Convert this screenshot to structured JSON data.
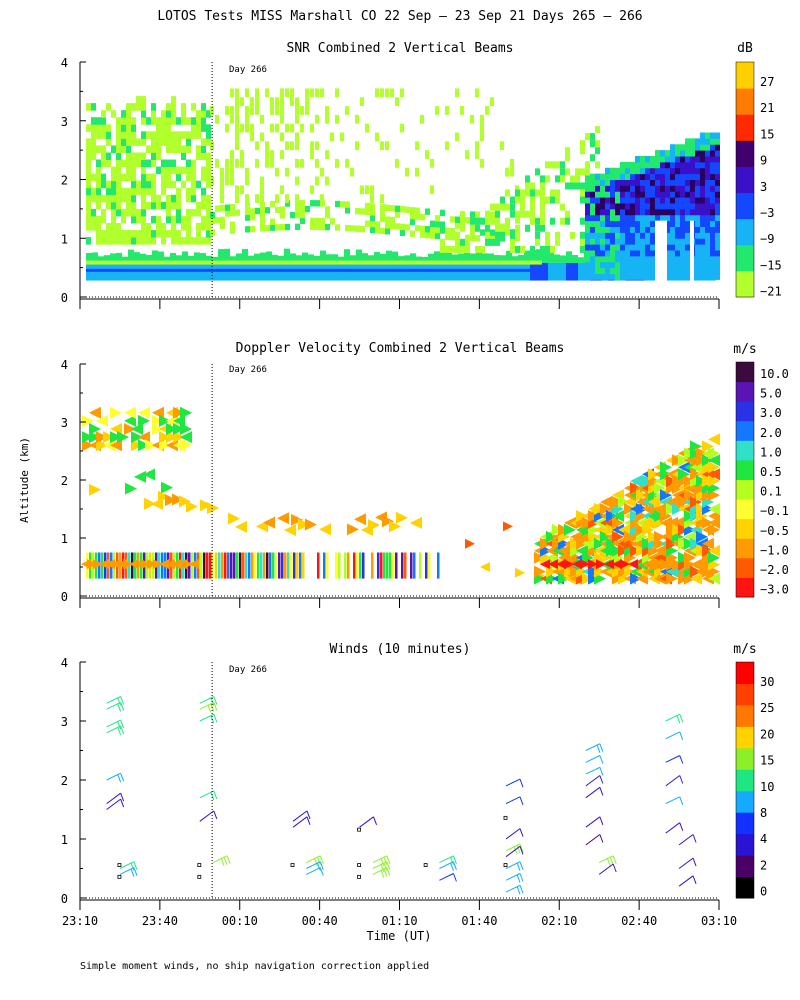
{
  "figure": {
    "title": "LOTOS Tests MISS Marshall CO  22 Sep — 23 Sep 21 Days 265 — 266",
    "xlabel": "Time (UT)",
    "ylabel": "Altitude (km)",
    "footnote": "Simple moment winds, no ship navigation correction applied",
    "day_marker_label": "Day 266"
  },
  "chart_data": [
    {
      "id": "snr",
      "type": "heatmap",
      "title": "SNR Combined 2 Vertical Beams",
      "xlabel": "Time (UT)",
      "ylabel": "Altitude (km)",
      "x_range": [
        "23:10",
        "03:10"
      ],
      "ylim": [
        0,
        4
      ],
      "y_ticks": [
        "0",
        "1",
        "2",
        "3",
        "4"
      ],
      "day_marker_time": "00:00",
      "colorbar": {
        "unit": "dB",
        "tick_labels": [
          "27",
          "21",
          "15",
          "9",
          "3",
          "−3",
          "−9",
          "−15",
          "−21"
        ],
        "colors": [
          "#b2ff2e",
          "#22e86e",
          "#16b4f4",
          "#1448ff",
          "#3a10c8",
          "#40006e",
          "#ff2a00",
          "#ff7c00",
          "#ffcf00"
        ]
      },
      "regions": [
        {
          "t0": "23:10",
          "t1": "02:10",
          "alt0": 0.25,
          "alt1": 0.55,
          "level": "−9"
        },
        {
          "t0": "23:10",
          "t1": "02:10",
          "alt0": 0.55,
          "alt1": 0.8,
          "level": "−15"
        },
        {
          "t0": "23:10",
          "t1": "00:00",
          "alt0": 0.9,
          "alt1": 3.3,
          "level": "−21"
        },
        {
          "t0": "00:00",
          "t1": "01:45",
          "alt0": 1.1,
          "alt1": 1.5,
          "level": "−21"
        },
        {
          "t0": "02:00",
          "t1": "03:10",
          "alt0": 0.3,
          "alt1": 2.7,
          "level": "−3"
        },
        {
          "t0": "02:25",
          "t1": "03:05",
          "alt0": 1.6,
          "alt1": 2.3,
          "level": "3"
        }
      ]
    },
    {
      "id": "doppler",
      "type": "heatmap",
      "title": "Doppler Velocity Combined 2 Vertical Beams",
      "xlabel": "Time (UT)",
      "ylabel": "Altitude (km)",
      "x_range": [
        "23:10",
        "03:10"
      ],
      "ylim": [
        0,
        4
      ],
      "y_ticks": [
        "0",
        "1",
        "2",
        "3",
        "4"
      ],
      "day_marker_time": "00:00",
      "colorbar": {
        "unit": "m/s",
        "tick_labels": [
          "10.0",
          "5.0",
          "3.0",
          "2.0",
          "1.0",
          "0.5",
          "0.1",
          "−0.1",
          "−0.5",
          "−1.0",
          "−2.0",
          "−3.0"
        ],
        "colors": [
          "#ff1414",
          "#ff5a00",
          "#ff9a00",
          "#ffd200",
          "#ffff30",
          "#b4ff20",
          "#20e640",
          "#30e0c8",
          "#1478ff",
          "#2a32e6",
          "#5a14b4",
          "#3c0a3c"
        ]
      },
      "regions": [
        {
          "t0": "23:10",
          "t1": "00:05",
          "alt0": 2.6,
          "alt1": 3.3,
          "level": "−1.0"
        },
        {
          "t0": "23:10",
          "t1": "01:35",
          "alt0": 0.3,
          "alt1": 0.8,
          "level": "mixed"
        },
        {
          "t0": "00:00",
          "t1": "01:35",
          "alt0": 1.1,
          "alt1": 1.4,
          "level": "−1.0"
        },
        {
          "t0": "02:00",
          "t1": "03:10",
          "alt0": 0.3,
          "alt1": 2.8,
          "level": "mixed"
        }
      ]
    },
    {
      "id": "winds",
      "type": "scatter",
      "title": "Winds (10 minutes)",
      "xlabel": "Time (UT)",
      "ylabel": "Altitude (km)",
      "x_ticks": [
        "23:10",
        "23:40",
        "00:10",
        "00:40",
        "01:10",
        "01:40",
        "02:10",
        "02:40",
        "03:10"
      ],
      "y_ticks": [
        "0",
        "1",
        "2",
        "3",
        "4"
      ],
      "ylim": [
        0,
        4
      ],
      "day_marker_time": "00:00",
      "colorbar": {
        "unit": "m/s",
        "tick_labels": [
          "30",
          "25",
          "20",
          "15",
          "10",
          "8",
          "4",
          "2",
          "0"
        ],
        "colors": [
          "#000000",
          "#4a0064",
          "#2a14d2",
          "#1230ff",
          "#14aaff",
          "#1ee682",
          "#8cf028",
          "#ffd200",
          "#ff7800",
          "#ff4000",
          "#ff0000"
        ]
      },
      "barbs": [
        {
          "time": "23:20",
          "alt": 3.3,
          "speed": 17
        },
        {
          "time": "23:20",
          "alt": 3.2,
          "speed": 17
        },
        {
          "time": "23:20",
          "alt": 2.9,
          "speed": 17
        },
        {
          "time": "23:20",
          "alt": 2.8,
          "speed": 17
        },
        {
          "time": "23:20",
          "alt": 2.0,
          "speed": 12
        },
        {
          "time": "23:20",
          "alt": 1.6,
          "speed": 4
        },
        {
          "time": "23:20",
          "alt": 1.5,
          "speed": 4
        },
        {
          "time": "23:25",
          "alt": 0.5,
          "speed": 18
        },
        {
          "time": "23:25",
          "alt": 0.4,
          "speed": 14
        },
        {
          "time": "23:55",
          "alt": 3.3,
          "speed": 19
        },
        {
          "time": "23:55",
          "alt": 3.2,
          "speed": 20
        },
        {
          "time": "23:55",
          "alt": 3.0,
          "speed": 18
        },
        {
          "time": "23:55",
          "alt": 1.7,
          "speed": 17
        },
        {
          "time": "23:55",
          "alt": 1.3,
          "speed": 4
        },
        {
          "time": "00:00",
          "alt": 0.6,
          "speed": 21
        },
        {
          "time": "00:30",
          "alt": 1.3,
          "speed": 4
        },
        {
          "time": "00:30",
          "alt": 1.2,
          "speed": 4
        },
        {
          "time": "00:35",
          "alt": 0.6,
          "speed": 22
        },
        {
          "time": "00:35",
          "alt": 0.5,
          "speed": 13
        },
        {
          "time": "00:35",
          "alt": 0.4,
          "speed": 11
        },
        {
          "time": "00:55",
          "alt": 1.2,
          "speed": 4
        },
        {
          "time": "01:00",
          "alt": 0.6,
          "speed": 23
        },
        {
          "time": "01:00",
          "alt": 0.5,
          "speed": 24
        },
        {
          "time": "01:00",
          "alt": 0.4,
          "speed": 23
        },
        {
          "time": "01:25",
          "alt": 0.6,
          "speed": 17
        },
        {
          "time": "01:25",
          "alt": 0.5,
          "speed": 12
        },
        {
          "time": "01:25",
          "alt": 0.3,
          "speed": 9
        },
        {
          "time": "01:50",
          "alt": 1.9,
          "speed": 8
        },
        {
          "time": "01:50",
          "alt": 1.6,
          "speed": 8
        },
        {
          "time": "01:50",
          "alt": 1.0,
          "speed": 4
        },
        {
          "time": "01:50",
          "alt": 0.8,
          "speed": 21
        },
        {
          "time": "01:50",
          "alt": 0.7,
          "speed": 5
        },
        {
          "time": "01:50",
          "alt": 0.5,
          "speed": 13
        },
        {
          "time": "01:50",
          "alt": 0.3,
          "speed": 12
        },
        {
          "time": "01:50",
          "alt": 0.1,
          "speed": 13
        },
        {
          "time": "02:20",
          "alt": 2.5,
          "speed": 13
        },
        {
          "time": "02:20",
          "alt": 2.3,
          "speed": 10
        },
        {
          "time": "02:20",
          "alt": 2.1,
          "speed": 10
        },
        {
          "time": "02:20",
          "alt": 1.9,
          "speed": 4
        },
        {
          "time": "02:20",
          "alt": 1.7,
          "speed": 4
        },
        {
          "time": "02:20",
          "alt": 1.2,
          "speed": 4
        },
        {
          "time": "02:20",
          "alt": 0.9,
          "speed": 2
        },
        {
          "time": "02:25",
          "alt": 0.6,
          "speed": 22
        },
        {
          "time": "02:25",
          "alt": 0.4,
          "speed": 4
        },
        {
          "time": "02:50",
          "alt": 3.0,
          "speed": 17
        },
        {
          "time": "02:50",
          "alt": 2.7,
          "speed": 10
        },
        {
          "time": "02:50",
          "alt": 2.3,
          "speed": 9
        },
        {
          "time": "02:50",
          "alt": 1.9,
          "speed": 4
        },
        {
          "time": "02:50",
          "alt": 1.6,
          "speed": 10
        },
        {
          "time": "02:50",
          "alt": 1.1,
          "speed": 4
        },
        {
          "time": "02:55",
          "alt": 0.9,
          "speed": 4
        },
        {
          "time": "02:55",
          "alt": 0.5,
          "speed": 4
        },
        {
          "time": "02:55",
          "alt": 0.2,
          "speed": 4
        }
      ],
      "calm_markers": [
        {
          "time": "23:25",
          "alt": 0.55
        },
        {
          "time": "23:25",
          "alt": 0.35
        },
        {
          "time": "23:55",
          "alt": 0.55
        },
        {
          "time": "23:55",
          "alt": 0.35
        },
        {
          "time": "00:30",
          "alt": 0.55
        },
        {
          "time": "00:55",
          "alt": 1.15
        },
        {
          "time": "00:55",
          "alt": 0.55
        },
        {
          "time": "00:55",
          "alt": 0.35
        },
        {
          "time": "01:20",
          "alt": 0.55
        },
        {
          "time": "01:50",
          "alt": 1.35
        },
        {
          "time": "01:50",
          "alt": 0.55
        }
      ]
    }
  ]
}
